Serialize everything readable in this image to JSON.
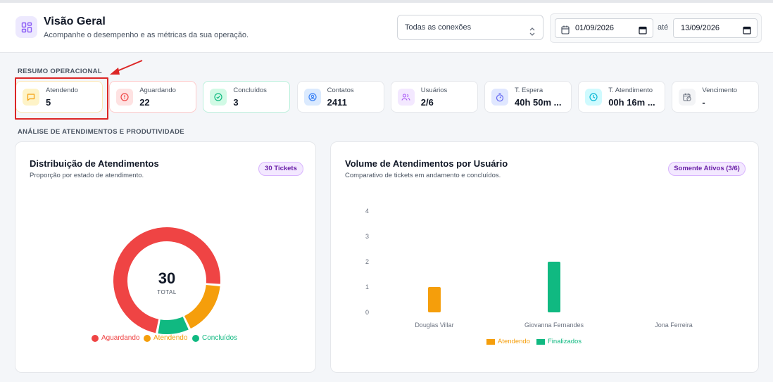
{
  "header": {
    "title": "Visão Geral",
    "subtitle": "Acompanhe o desempenho e as métricas da sua operação.",
    "icon": "dashboard-grid-icon",
    "connection_select": "Todas as conexões",
    "date_from": "01/09/2026",
    "date_separator": "até",
    "date_to": "13/09/2026"
  },
  "summary": {
    "label": "RESUMO OPERACIONAL",
    "cards": [
      {
        "label": "Atendendo",
        "value": "5",
        "icon": "chat-icon",
        "color": "#f59e0b"
      },
      {
        "label": "Aguardando",
        "value": "22",
        "icon": "alert-circle-icon",
        "color": "#ef4444"
      },
      {
        "label": "Concluídos",
        "value": "3",
        "icon": "check-circle-icon",
        "color": "#10b981"
      },
      {
        "label": "Contatos",
        "value": "2411",
        "icon": "contact-icon",
        "color": "#3b82f6"
      },
      {
        "label": "Usuários",
        "value": "2/6",
        "icon": "users-icon",
        "color": "#a855f7"
      },
      {
        "label": "T. Espera",
        "value": "40h 50m ...",
        "icon": "stopwatch-icon",
        "color": "#6366f1"
      },
      {
        "label": "T. Atendimento",
        "value": "00h 16m ...",
        "icon": "clock-icon",
        "color": "#06b6d4"
      },
      {
        "label": "Vencimento",
        "value": "-",
        "icon": "calendar-clock-icon",
        "color": "#6b7280"
      }
    ]
  },
  "analysis": {
    "label": "ANÁLISE DE ATENDIMENTOS E PRODUTIVIDADE"
  },
  "donut_card": {
    "title": "Distribuição de Atendimentos",
    "subtitle": "Proporção por estado de atendimento.",
    "badge": "30 Tickets",
    "total_value": "30",
    "total_label": "TOTAL"
  },
  "bar_card": {
    "title": "Volume de Atendimentos por Usuário",
    "subtitle": "Comparativo de tickets em andamento e concluídos.",
    "badge": "Somente Ativos (3/6)"
  },
  "chart_data": [
    {
      "type": "pie",
      "categories": [
        "Aguardando",
        "Atendendo",
        "Concluídos"
      ],
      "values": [
        22,
        5,
        3
      ],
      "colors": [
        "#ef4444",
        "#f59e0b",
        "#10b981"
      ],
      "legend": "bottom"
    },
    {
      "type": "bar",
      "categories": [
        "Douglas Villar",
        "Giovanna Fernandes",
        "Jona Ferreira"
      ],
      "series": [
        {
          "name": "Atendendo",
          "values": [
            1,
            0,
            0
          ],
          "color": "#f59e0b"
        },
        {
          "name": "Finalizados",
          "values": [
            0,
            2,
            0
          ],
          "color": "#10b981"
        }
      ],
      "yticks": [
        0,
        1,
        2,
        3,
        4
      ],
      "ylim": [
        0,
        4
      ],
      "grid": false,
      "legend": "bottom"
    }
  ]
}
